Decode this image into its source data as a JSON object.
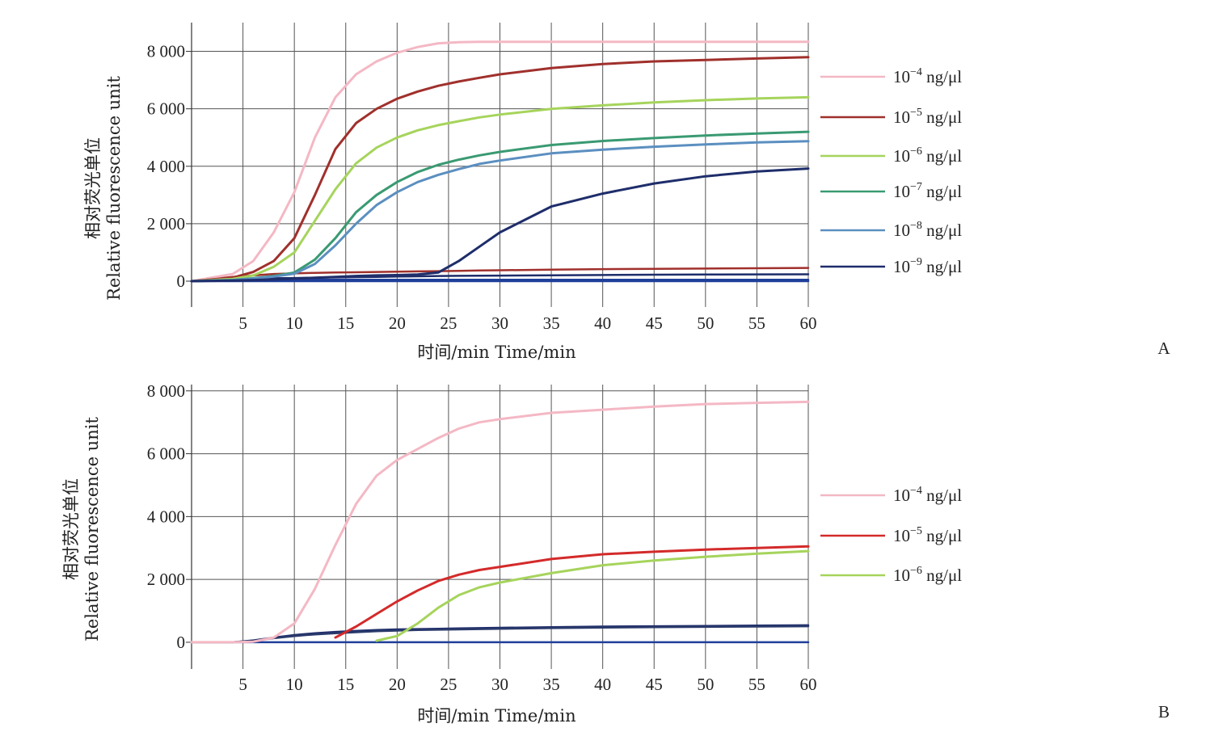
{
  "unit_suffix": "ng/μl",
  "chart_data": [
    {
      "type": "line",
      "panel_label": "A",
      "xlabel": "时间/min  Time/min",
      "ylabel_cn": "相对荧光单位",
      "ylabel_en": "Relative fluorescence unit",
      "xlim": [
        0,
        60
      ],
      "ylim": [
        -900,
        9000
      ],
      "x_ticks": [
        "5",
        "10",
        "15",
        "20",
        "25",
        "30",
        "35",
        "40",
        "45",
        "50",
        "55",
        "60"
      ],
      "x_tick_values": [
        5,
        10,
        15,
        20,
        25,
        30,
        35,
        40,
        45,
        50,
        55,
        60
      ],
      "y_ticks": [
        "0",
        "2 000",
        "4 000",
        "6 000",
        "8 000"
      ],
      "y_tick_values": [
        0,
        2000,
        4000,
        6000,
        8000
      ],
      "grid": true,
      "legend_position": "right",
      "x": [
        0,
        4,
        6,
        8,
        10,
        12,
        14,
        16,
        18,
        20,
        22,
        24,
        26,
        28,
        30,
        35,
        40,
        45,
        50,
        55,
        60
      ],
      "series": [
        {
          "name": "10",
          "exp": "−4",
          "color": "#f4b8c4",
          "values": [
            0,
            250,
            700,
            1700,
            3100,
            5000,
            6400,
            7200,
            7650,
            7950,
            8150,
            8280,
            8320,
            8330,
            8330,
            8330,
            8330,
            8330,
            8330,
            8330,
            8330
          ]
        },
        {
          "name": "10",
          "exp": "−5",
          "color": "#a0302c",
          "values": [
            0,
            120,
            320,
            700,
            1500,
            3000,
            4600,
            5500,
            6000,
            6350,
            6600,
            6800,
            6950,
            7080,
            7200,
            7420,
            7560,
            7650,
            7700,
            7750,
            7800
          ]
        },
        {
          "name": "10",
          "exp": "−6",
          "color": "#a6d45c",
          "values": [
            0,
            80,
            200,
            500,
            1000,
            2100,
            3200,
            4100,
            4650,
            5000,
            5250,
            5430,
            5570,
            5700,
            5800,
            6000,
            6120,
            6220,
            6300,
            6360,
            6400
          ]
        },
        {
          "name": "10",
          "exp": "−7",
          "color": "#3a9a72",
          "values": [
            0,
            40,
            100,
            180,
            300,
            750,
            1500,
            2400,
            3000,
            3450,
            3800,
            4050,
            4230,
            4380,
            4500,
            4740,
            4880,
            4980,
            5070,
            5140,
            5200
          ]
        },
        {
          "name": "10",
          "exp": "−8",
          "color": "#5b8fc0",
          "values": [
            0,
            40,
            90,
            160,
            260,
            600,
            1250,
            2000,
            2650,
            3100,
            3450,
            3700,
            3900,
            4080,
            4200,
            4450,
            4580,
            4680,
            4760,
            4830,
            4870
          ]
        },
        {
          "name": "10",
          "exp": "−9",
          "color": "#1e2d6b",
          "values": [
            0,
            20,
            40,
            60,
            90,
            120,
            150,
            180,
            200,
            210,
            230,
            300,
            700,
            1200,
            1700,
            2600,
            3050,
            3400,
            3650,
            3820,
            3920
          ]
        }
      ],
      "baselines": [
        {
          "color": "#a0302c",
          "values": [
            0,
            150,
            200,
            250,
            270,
            290,
            300,
            310,
            320,
            330,
            340,
            350,
            360,
            370,
            380,
            400,
            420,
            430,
            440,
            450,
            460
          ]
        },
        {
          "color": "#1e2d6b",
          "values": [
            0,
            60,
            80,
            100,
            110,
            120,
            130,
            140,
            150,
            160,
            170,
            180,
            185,
            190,
            195,
            205,
            215,
            225,
            230,
            235,
            240
          ]
        },
        {
          "color": "#1f3f9a",
          "values": [
            0,
            20,
            30,
            40,
            45,
            50,
            50,
            50,
            50,
            50,
            50,
            50,
            50,
            50,
            50,
            50,
            50,
            50,
            50,
            50,
            50
          ]
        },
        {
          "color": "#1f3f9a",
          "values": [
            0,
            0,
            0,
            0,
            0,
            0,
            0,
            0,
            0,
            0,
            0,
            0,
            0,
            0,
            0,
            0,
            0,
            0,
            0,
            0,
            0
          ]
        }
      ]
    },
    {
      "type": "line",
      "panel_label": "B",
      "xlabel": "时间/min  Time/min",
      "ylabel_cn": "相对荧光单位",
      "ylabel_en": "Relative fluorescence unit",
      "xlim": [
        0,
        60
      ],
      "ylim": [
        -850,
        8200
      ],
      "x_ticks": [
        "5",
        "10",
        "15",
        "20",
        "25",
        "30",
        "35",
        "40",
        "45",
        "50",
        "55",
        "60"
      ],
      "x_tick_values": [
        5,
        10,
        15,
        20,
        25,
        30,
        35,
        40,
        45,
        50,
        55,
        60
      ],
      "y_ticks": [
        "0",
        "2 000",
        "4 000",
        "6 000",
        "8 000"
      ],
      "y_tick_values": [
        0,
        2000,
        4000,
        6000,
        8000
      ],
      "grid": true,
      "legend_position": "right",
      "x": [
        0,
        4,
        6,
        8,
        10,
        12,
        14,
        16,
        18,
        20,
        22,
        24,
        26,
        28,
        30,
        35,
        40,
        45,
        50,
        55,
        60
      ],
      "series": [
        {
          "name": "10",
          "exp": "−4",
          "color": "#f4b8c4",
          "values": [
            0,
            0,
            20,
            150,
            600,
            1700,
            3100,
            4400,
            5300,
            5800,
            6150,
            6500,
            6800,
            7000,
            7100,
            7300,
            7400,
            7500,
            7580,
            7620,
            7650
          ]
        },
        {
          "name": "10",
          "exp": "−5",
          "color": "#d42a2a",
          "values": [
            null,
            null,
            null,
            null,
            null,
            null,
            150,
            500,
            900,
            1300,
            1650,
            1950,
            2150,
            2300,
            2400,
            2650,
            2800,
            2880,
            2950,
            3000,
            3050
          ]
        },
        {
          "name": "10",
          "exp": "−6",
          "color": "#a6d45c",
          "values": [
            null,
            null,
            null,
            null,
            null,
            null,
            null,
            null,
            50,
            200,
            600,
            1100,
            1500,
            1750,
            1900,
            2200,
            2450,
            2600,
            2720,
            2820,
            2900
          ]
        }
      ],
      "baselines": [
        {
          "color": "#1e2d6b",
          "values": [
            0,
            0,
            60,
            150,
            230,
            290,
            330,
            360,
            390,
            410,
            420,
            430,
            440,
            450,
            460,
            480,
            500,
            510,
            520,
            530,
            540
          ]
        },
        {
          "color": "#2a3a6b",
          "values": [
            0,
            0,
            50,
            130,
            200,
            250,
            290,
            320,
            350,
            370,
            390,
            400,
            410,
            420,
            430,
            450,
            470,
            480,
            490,
            500,
            510
          ]
        },
        {
          "color": "#1f3f9a",
          "values": [
            0,
            0,
            0,
            0,
            0,
            0,
            0,
            0,
            0,
            0,
            0,
            0,
            0,
            0,
            0,
            0,
            0,
            0,
            0,
            0,
            0
          ]
        }
      ]
    }
  ]
}
